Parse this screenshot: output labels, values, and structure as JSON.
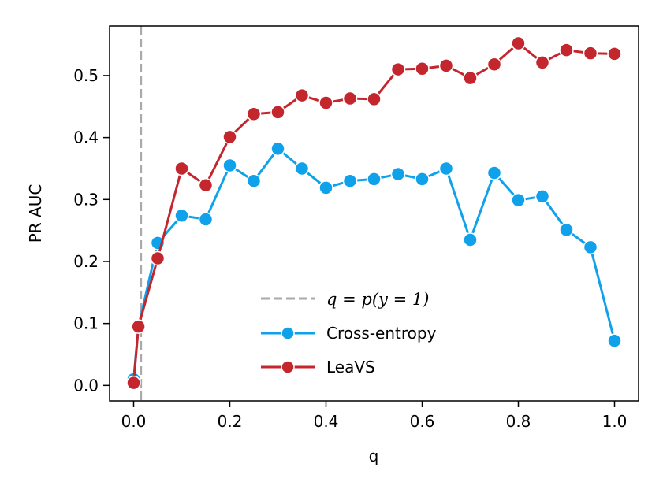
{
  "chart_data": {
    "type": "line",
    "title": "",
    "xlabel": "q",
    "ylabel": "PR AUC",
    "xlim": [
      -0.05,
      1.05
    ],
    "ylim": [
      -0.025,
      0.58
    ],
    "xticks": [
      0.0,
      0.2,
      0.4,
      0.6,
      0.8,
      1.0
    ],
    "xtick_labels": [
      "0.0",
      "0.2",
      "0.4",
      "0.6",
      "0.8",
      "1.0"
    ],
    "yticks": [
      0.0,
      0.1,
      0.2,
      0.3,
      0.4,
      0.5
    ],
    "ytick_labels": [
      "0.0",
      "0.1",
      "0.2",
      "0.3",
      "0.4",
      "0.5"
    ],
    "grid": false,
    "legend_position": "lower-center",
    "vline": {
      "x": 0.015,
      "label": "q = p(y = 1)",
      "color": "#aaaaaa",
      "style": "dashed"
    },
    "x": [
      0.0,
      0.01,
      0.05,
      0.1,
      0.15,
      0.2,
      0.25,
      0.3,
      0.35,
      0.4,
      0.45,
      0.5,
      0.55,
      0.6,
      0.65,
      0.7,
      0.75,
      0.8,
      0.85,
      0.9,
      0.95,
      1.0
    ],
    "series": [
      {
        "name": "Cross-entropy",
        "color": "#0fa2eb",
        "values": [
          0.01,
          0.095,
          0.23,
          0.274,
          0.268,
          0.355,
          0.33,
          0.382,
          0.35,
          0.319,
          0.33,
          0.333,
          0.341,
          0.333,
          0.35,
          0.235,
          0.343,
          0.299,
          0.305,
          0.251,
          0.223,
          0.072
        ]
      },
      {
        "name": "LeaVS",
        "color": "#c4262e",
        "values": [
          0.004,
          0.095,
          0.205,
          0.35,
          0.323,
          0.401,
          0.438,
          0.441,
          0.468,
          0.456,
          0.463,
          0.462,
          0.51,
          0.511,
          0.516,
          0.496,
          0.518,
          0.552,
          0.521,
          0.541,
          0.536,
          0.535
        ]
      }
    ]
  }
}
